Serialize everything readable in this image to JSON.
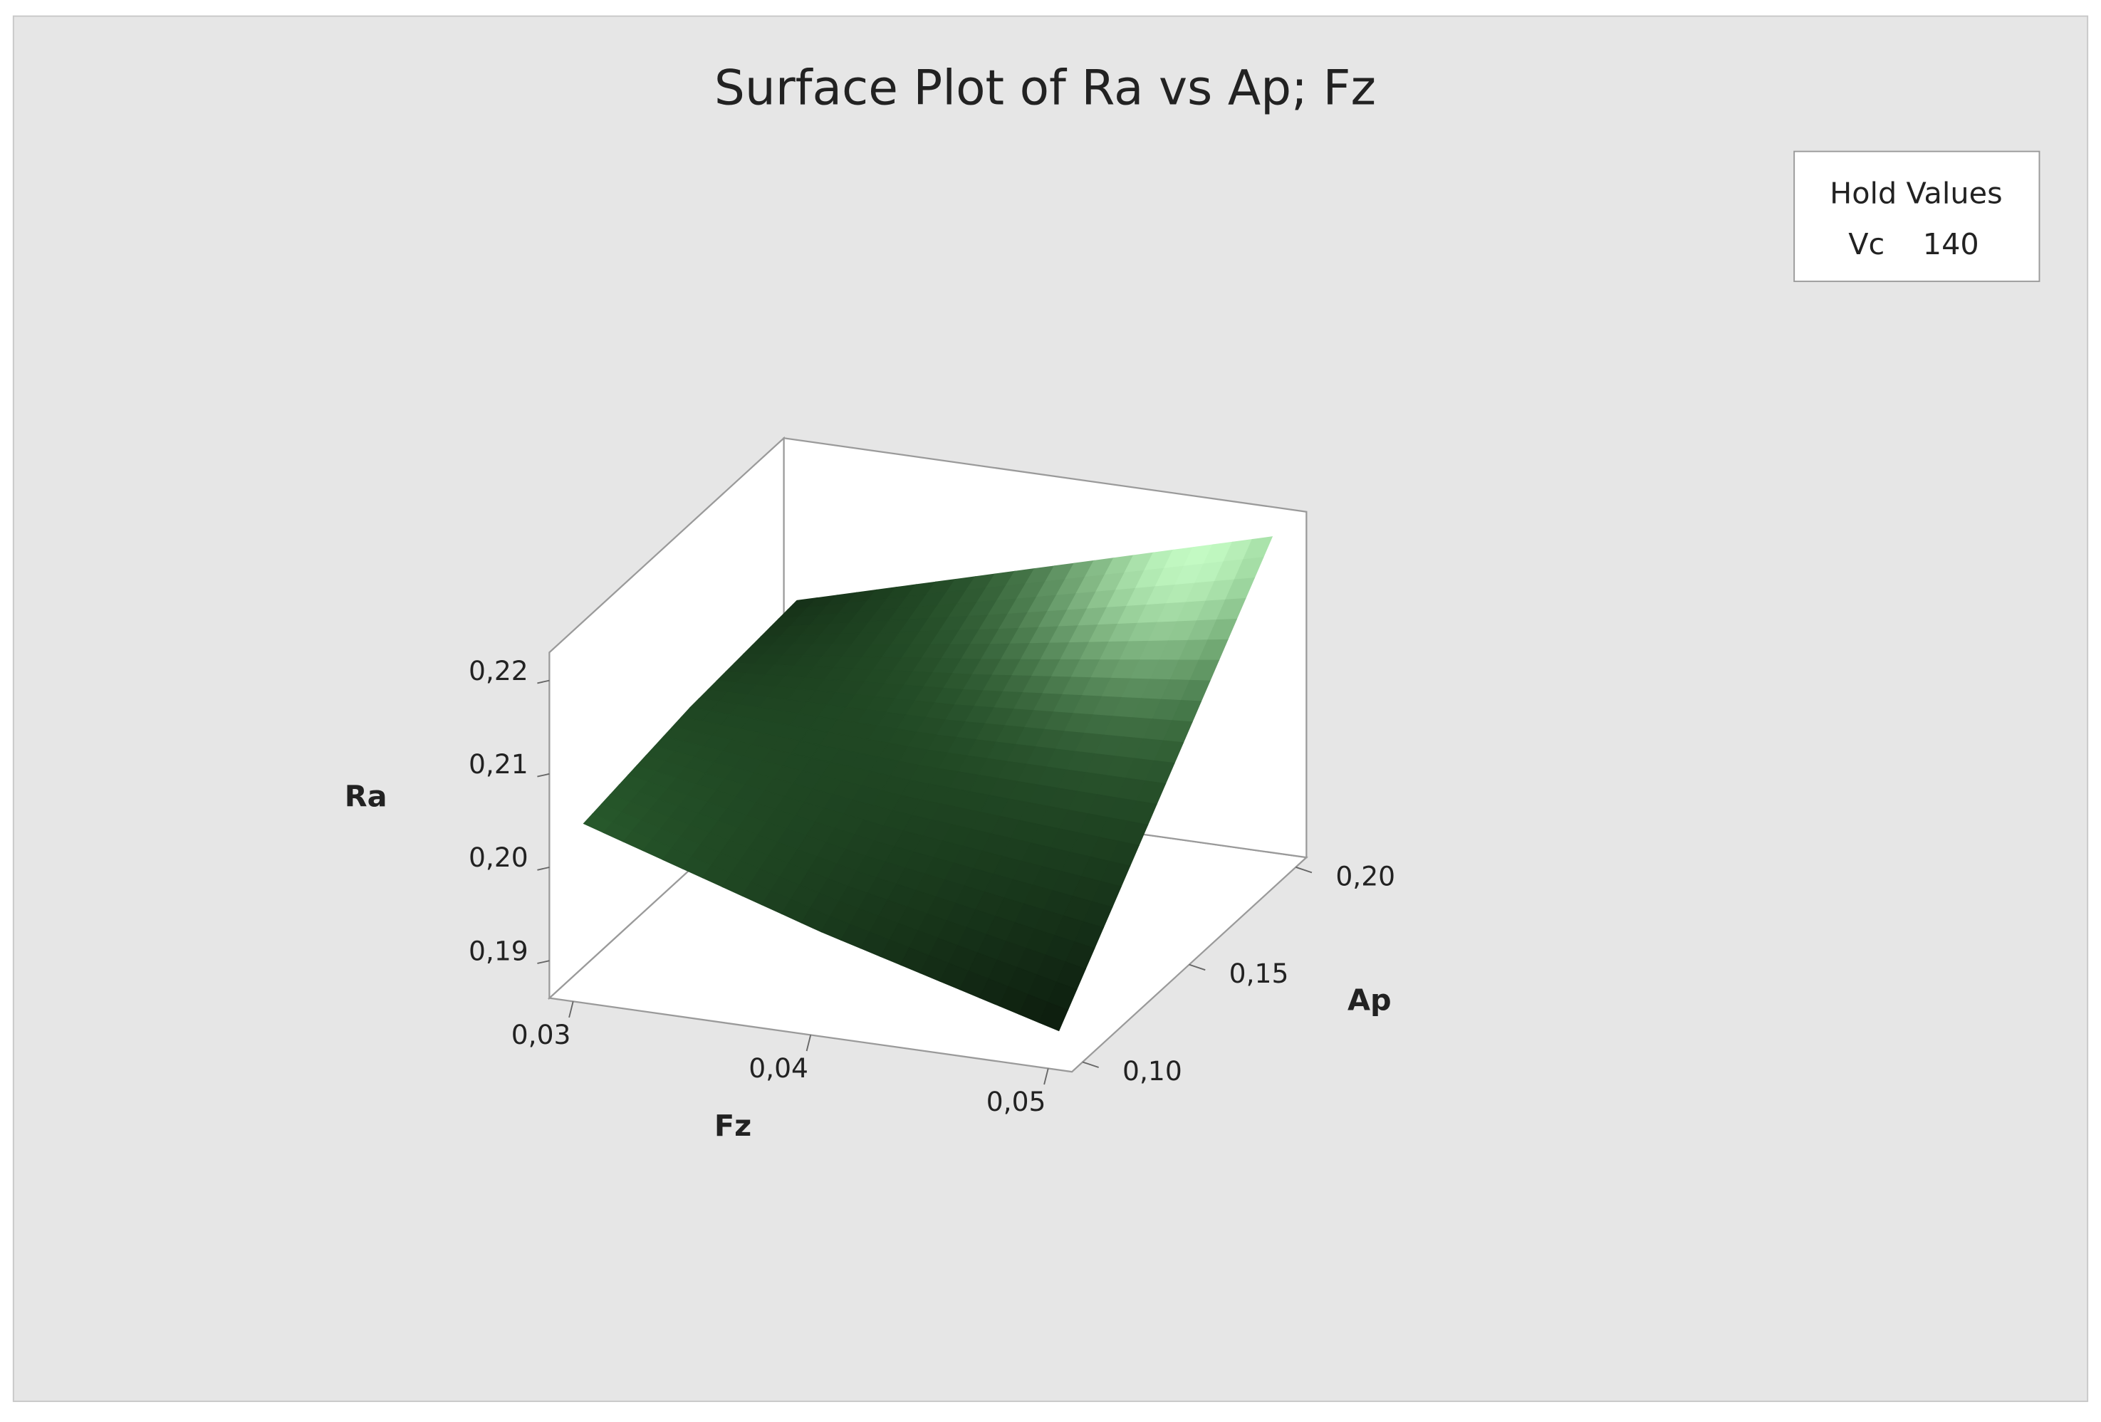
{
  "chart_data": {
    "type": "surface",
    "title": "Surface Plot of Ra vs Ap; Fz",
    "xlabel": "Fz",
    "ylabel": "Ap",
    "zlabel": "Ra",
    "x": [
      0.03,
      0.04,
      0.05
    ],
    "y": [
      0.1,
      0.15,
      0.2
    ],
    "z": [
      [
        0.204,
        0.196,
        0.189
      ],
      [
        0.206,
        0.205,
        0.205
      ],
      [
        0.207,
        0.214,
        0.221
      ]
    ],
    "xlim": [
      0.029,
      0.051
    ],
    "ylim": [
      0.095,
      0.205
    ],
    "zlim": [
      0.186,
      0.223
    ],
    "xticks": [
      {
        "value": 0.03,
        "label": "0,03"
      },
      {
        "value": 0.04,
        "label": "0,04"
      },
      {
        "value": 0.05,
        "label": "0,05"
      }
    ],
    "yticks": [
      {
        "value": 0.1,
        "label": "0,10"
      },
      {
        "value": 0.15,
        "label": "0,15"
      },
      {
        "value": 0.2,
        "label": "0,20"
      }
    ],
    "zticks": [
      {
        "value": 0.19,
        "label": "0,19"
      },
      {
        "value": 0.2,
        "label": "0,20"
      },
      {
        "value": 0.21,
        "label": "0,21"
      },
      {
        "value": 0.22,
        "label": "0,22"
      }
    ],
    "color": "#2f6a34",
    "hold_values": {
      "title": "Hold Values",
      "variable": "Vc",
      "value": 140
    }
  }
}
